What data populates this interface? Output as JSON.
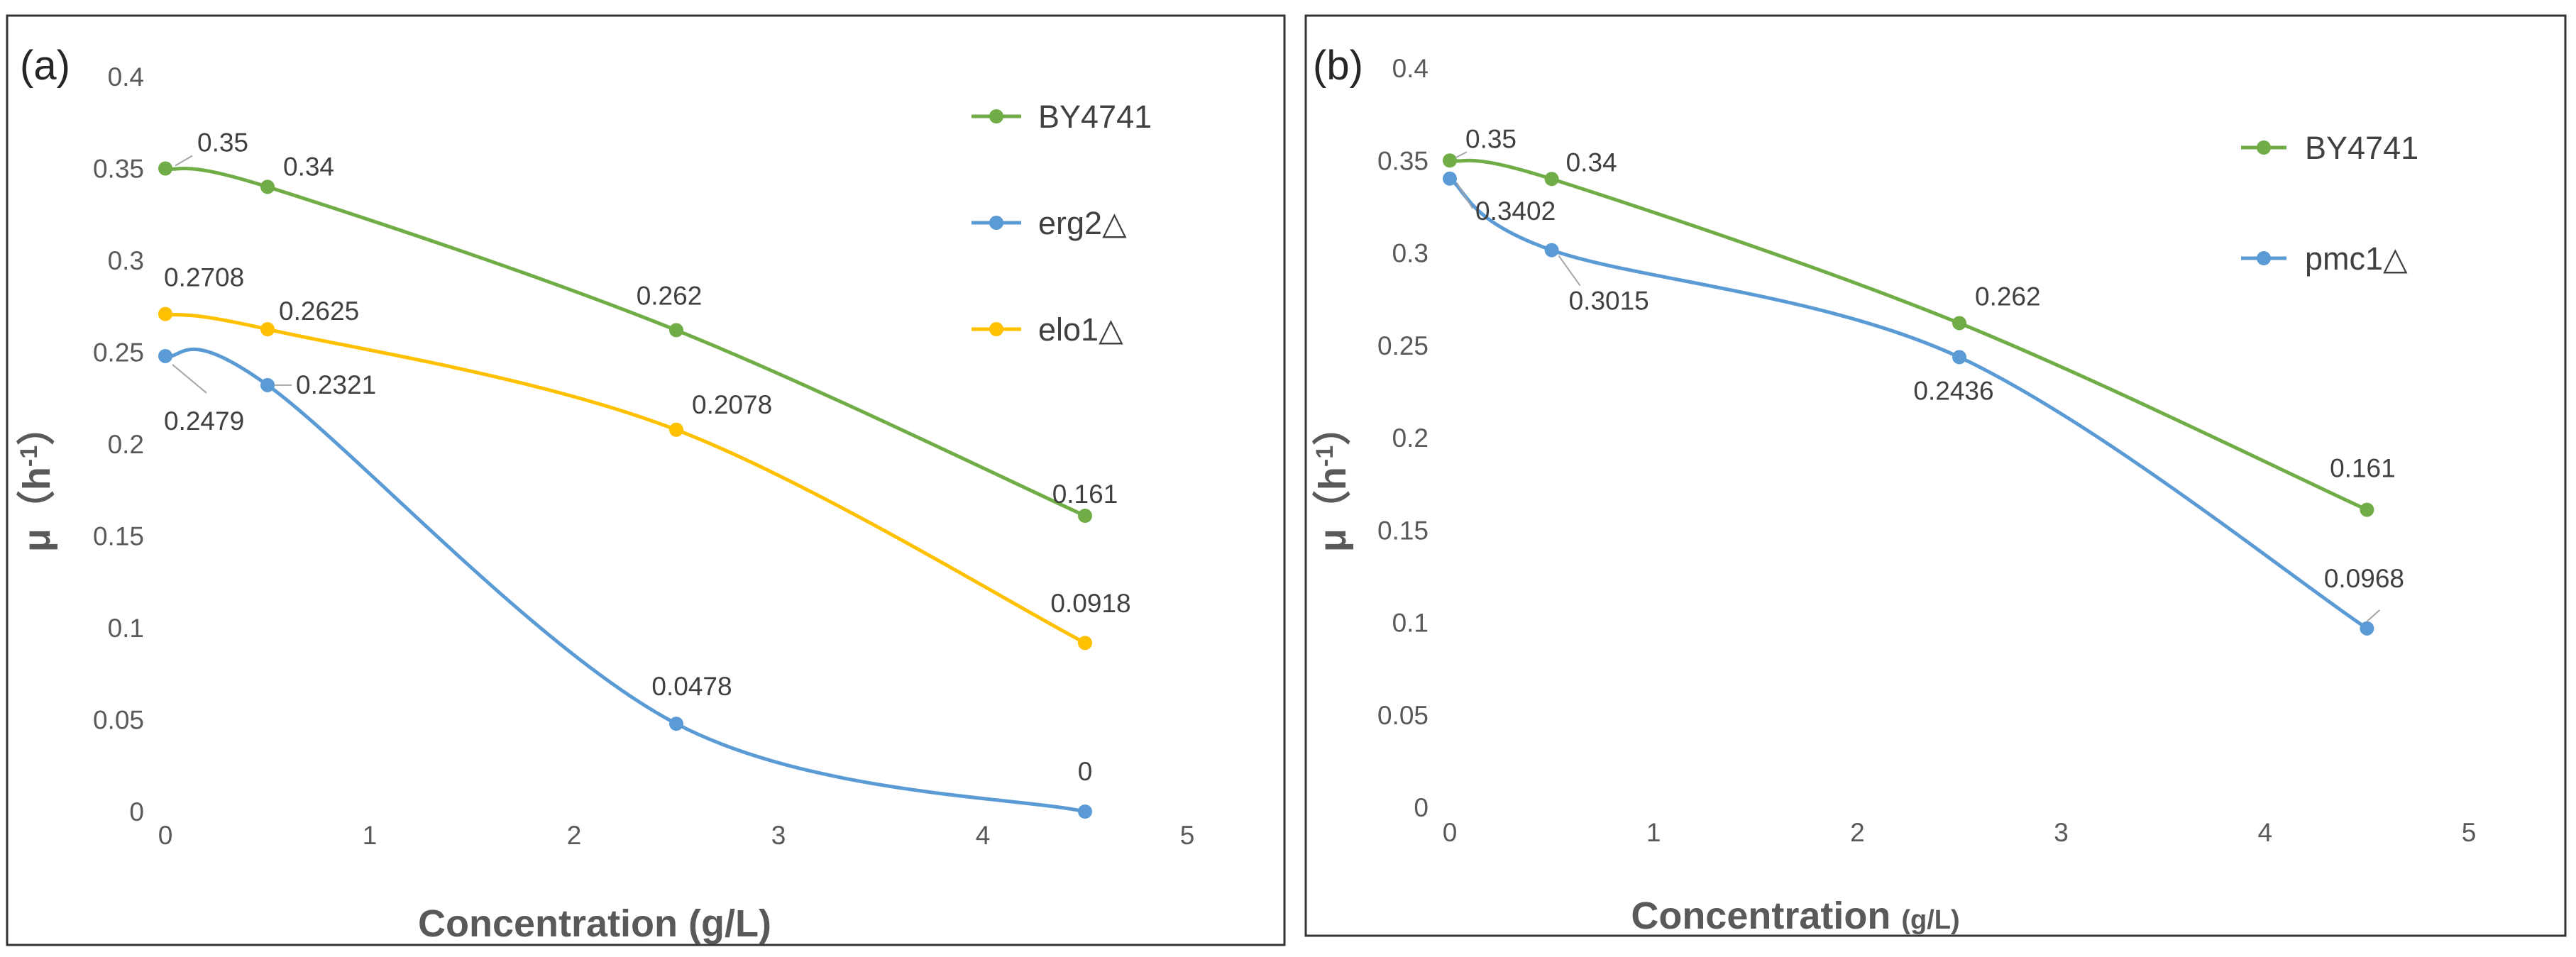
{
  "chart_data": [
    {
      "type": "line",
      "panel_label": "(a)",
      "xlabel": "Concentration (g/L)",
      "ylabel_main": "μ（h",
      "ylabel_sup": "-1",
      "ylabel_close": "）",
      "xlim": [
        0,
        5
      ],
      "ylim": [
        0,
        0.4
      ],
      "xticks": [
        0,
        1,
        2,
        3,
        4,
        5
      ],
      "yticks": [
        0,
        0.05,
        0.1,
        0.15,
        0.2,
        0.25,
        0.3,
        0.35,
        0.4
      ],
      "xtick_labels": [
        "0",
        "1",
        "2",
        "3",
        "4",
        "5"
      ],
      "ytick_labels": [
        "0",
        "0.05",
        "0.1",
        "0.15",
        "0.2",
        "0.25",
        "0.3",
        "0.35",
        "0.4"
      ],
      "grid": false,
      "legend_position": "top-right",
      "series": [
        {
          "name": "BY4741",
          "color": "#70ad47",
          "x": [
            0,
            0.5,
            2.5,
            4.5
          ],
          "y": [
            0.35,
            0.34,
            0.262,
            0.161
          ],
          "labels": [
            "0.35",
            "0.34",
            "0.262",
            "0.161"
          ]
        },
        {
          "name": "erg2△",
          "color": "#5b9bd5",
          "x": [
            0,
            0.5,
            2.5,
            4.5
          ],
          "y": [
            0.2479,
            0.2321,
            0.0478,
            0
          ],
          "labels": [
            "0.2479",
            "0.2321",
            "0.0478",
            "0"
          ]
        },
        {
          "name": "elo1△",
          "color": "#ffc000",
          "x": [
            0,
            0.5,
            2.5,
            4.5
          ],
          "y": [
            0.2708,
            0.2625,
            0.2078,
            0.0918
          ],
          "labels": [
            "0.2708",
            "0.2625",
            "0.2078",
            "0.0918"
          ]
        }
      ]
    },
    {
      "type": "line",
      "panel_label": "(b)",
      "xlabel_main": "Concentration ",
      "xlabel_small": "(g/L)",
      "ylabel_main": "μ（h",
      "ylabel_sup": "-1",
      "ylabel_close": "）",
      "xlim": [
        0,
        5
      ],
      "ylim": [
        0,
        0.4
      ],
      "xticks": [
        0,
        1,
        2,
        3,
        4,
        5
      ],
      "yticks": [
        0,
        0.05,
        0.1,
        0.15,
        0.2,
        0.25,
        0.3,
        0.35,
        0.4
      ],
      "xtick_labels": [
        "0",
        "1",
        "2",
        "3",
        "4",
        "5"
      ],
      "ytick_labels": [
        "0",
        "0.05",
        "0.1",
        "0.15",
        "0.2",
        "0.25",
        "0.3",
        "0.35",
        "0.4"
      ],
      "grid": false,
      "legend_position": "top-right",
      "series": [
        {
          "name": "BY4741",
          "color": "#70ad47",
          "x": [
            0,
            0.5,
            2.5,
            4.5
          ],
          "y": [
            0.35,
            0.34,
            0.262,
            0.161
          ],
          "labels": [
            "0.35",
            "0.34",
            "0.262",
            "0.161"
          ]
        },
        {
          "name": "pmc1△",
          "color": "#5b9bd5",
          "x": [
            0,
            0.5,
            2.5,
            4.5
          ],
          "y": [
            0.3402,
            0.3015,
            0.2436,
            0.0968
          ],
          "labels": [
            "0.3402",
            "0.3015",
            "0.2436",
            "0.0968"
          ]
        }
      ]
    }
  ]
}
